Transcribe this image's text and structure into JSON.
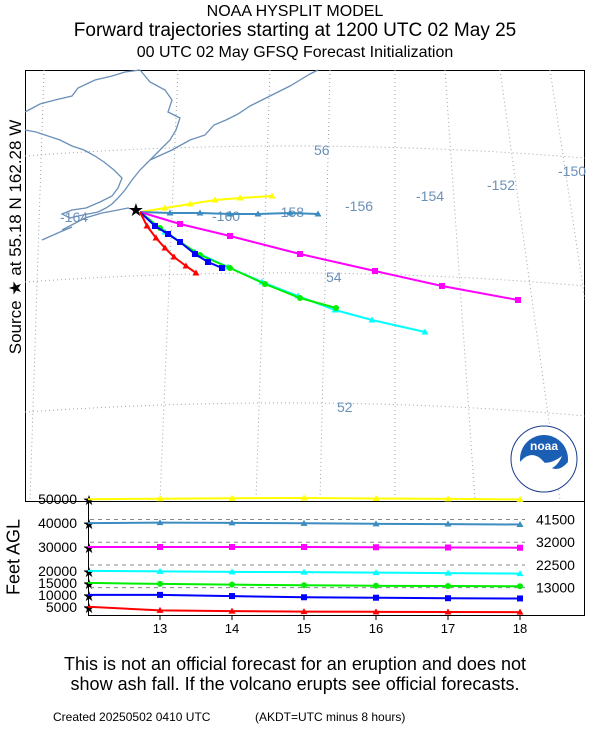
{
  "header": {
    "title1": "NOAA HYSPLIT MODEL",
    "title2": "Forward trajectories starting at 1200 UTC 02 May 25",
    "title3": "00 UTC 02 May    GFSQ  Forecast Initialization"
  },
  "side_label": "Source ★  at    55.18 N  162.28 W",
  "height_axis_label": "Feet AGL",
  "colors": {
    "coast": "#6a8fb8",
    "grid": "#9aa6b4",
    "grid_label": "#6a90b8",
    "yellow": "#ffff00",
    "teal": "#3c8cc0",
    "magenta": "#ff00ff",
    "cyan": "#00ffff",
    "green": "#00ee00",
    "blue": "#0000ff",
    "red": "#ff0000"
  },
  "map": {
    "longitude_labels": [
      "-164",
      "-160",
      "-158",
      "-156",
      "-154",
      "-152",
      "-150"
    ],
    "latitude_labels": [
      "56",
      "54",
      "52"
    ],
    "logo_text": "noaa",
    "logo_ring_text": "NATIONAL OCEANIC AND ATMOSPHERIC ADMINISTRATION · U.S. DEPARTMENT OF COMMERCE"
  },
  "chart_data": {
    "type": "line",
    "title": "Forward trajectories starting at 1200 UTC 02 May 25",
    "source": {
      "lat": 55.18,
      "lon": -162.28
    },
    "x": [
      12,
      13,
      14,
      15,
      16,
      17,
      18
    ],
    "xlabel": "",
    "xticks": [
      "13",
      "14",
      "15",
      "16",
      "17",
      "18"
    ],
    "ylabel": "Feet AGL",
    "yticks": [
      "5000",
      "10000",
      "15000",
      "20000",
      "30000",
      "40000",
      "50000"
    ],
    "ylim": [
      0,
      54000
    ],
    "series": [
      {
        "color": "yellow",
        "heights": [
          50000,
          50200,
          50400,
          50500,
          50300,
          50100,
          49900
        ]
      },
      {
        "color": "teal",
        "heights": [
          40000,
          40200,
          40100,
          39900,
          39700,
          39600,
          39400
        ],
        "level_label": "41500"
      },
      {
        "color": "magenta",
        "heights": [
          30000,
          30000,
          30000,
          30000,
          29900,
          29800,
          29700
        ],
        "level_label": "32000"
      },
      {
        "color": "cyan",
        "heights": [
          20000,
          19800,
          19600,
          19500,
          19300,
          19100,
          18900
        ],
        "level_label": "22500"
      },
      {
        "color": "green",
        "heights": [
          15000,
          14600,
          14300,
          14000,
          13800,
          13700,
          13600
        ],
        "level_label": "13000"
      },
      {
        "color": "blue",
        "heights": [
          10000,
          10000,
          9500,
          9000,
          8800,
          8600,
          8500
        ]
      },
      {
        "color": "red",
        "heights": [
          5000,
          3500,
          3200,
          3000,
          2900,
          2850,
          2800
        ]
      }
    ]
  },
  "disclaimer": {
    "line1": "This is not an official forecast for an eruption and does not",
    "line2": "show ash fall. If the volcano erupts see official forecasts."
  },
  "footer": {
    "created": "Created 20250502 0410 UTC",
    "timezone": "(AKDT=UTC minus 8 hours)"
  }
}
